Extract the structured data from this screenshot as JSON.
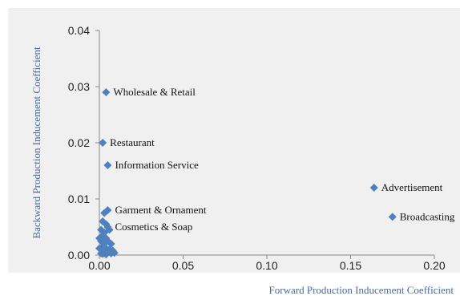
{
  "chart_data": {
    "type": "scatter",
    "title": "",
    "xlabel": "Forward Production Inducement Coefficient",
    "ylabel": "Backward Production Inducement Coefficient",
    "xlim": [
      0,
      0.2
    ],
    "ylim": [
      0,
      0.04
    ],
    "x_ticks": [
      "0.00",
      "0.05",
      "0.10",
      "0.15",
      "0.20"
    ],
    "y_ticks": [
      "0.00",
      "0.01",
      "0.02",
      "0.03",
      "0.04"
    ],
    "grid": false,
    "marker_color": "#4f81bd",
    "labeled_points": [
      {
        "label": "Wholesale & Retail",
        "x": 0.004,
        "y": 0.029
      },
      {
        "label": "Restaurant",
        "x": 0.002,
        "y": 0.02
      },
      {
        "label": "Information Service",
        "x": 0.005,
        "y": 0.016
      },
      {
        "label": "Garment & Ornament",
        "x": 0.005,
        "y": 0.008
      },
      {
        "label": "Cosmetics & Soap",
        "x": 0.005,
        "y": 0.005
      },
      {
        "label": "Advertisement",
        "x": 0.164,
        "y": 0.012
      },
      {
        "label": "Broadcasting",
        "x": 0.175,
        "y": 0.0068
      }
    ],
    "unlabeled_points": [
      {
        "x": 0.003,
        "y": 0.0075
      },
      {
        "x": 0.002,
        "y": 0.006
      },
      {
        "x": 0.004,
        "y": 0.0055
      },
      {
        "x": 0.001,
        "y": 0.0045
      },
      {
        "x": 0.003,
        "y": 0.004
      },
      {
        "x": 0.006,
        "y": 0.0045
      },
      {
        "x": 0.002,
        "y": 0.0035
      },
      {
        "x": 0.004,
        "y": 0.003
      },
      {
        "x": 0.001,
        "y": 0.0025
      },
      {
        "x": 0.005,
        "y": 0.0025
      },
      {
        "x": 0.003,
        "y": 0.002
      },
      {
        "x": 0.007,
        "y": 0.002
      },
      {
        "x": 0.002,
        "y": 0.0015
      },
      {
        "x": 0.004,
        "y": 0.0012
      },
      {
        "x": 0.001,
        "y": 0.001
      },
      {
        "x": 0.006,
        "y": 0.001
      },
      {
        "x": 0.008,
        "y": 0.0008
      },
      {
        "x": 0.003,
        "y": 0.0006
      },
      {
        "x": 0.005,
        "y": 0.0005
      },
      {
        "x": 0.001,
        "y": 0.0003
      },
      {
        "x": 0.002,
        "y": 0.0002
      },
      {
        "x": 0.007,
        "y": 0.0003
      },
      {
        "x": 0.004,
        "y": 0.0001
      },
      {
        "x": 0.009,
        "y": 0.0004
      },
      {
        "x": 0.0,
        "y": 0.0012
      },
      {
        "x": 0.0,
        "y": 0.003
      }
    ]
  }
}
